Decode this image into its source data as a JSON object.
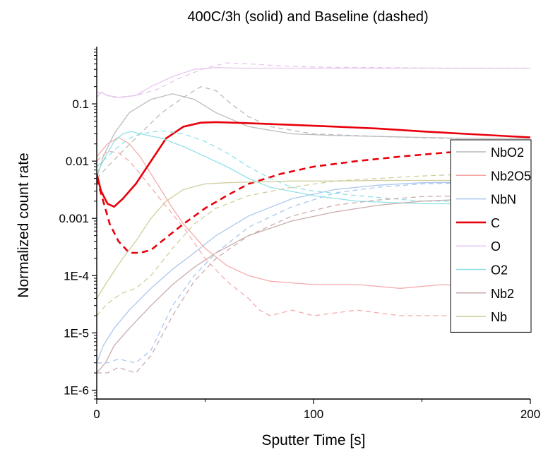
{
  "chart_data": {
    "type": "line",
    "title": "400C/3h (solid) and Baseline (dashed)",
    "xlabel": "Sputter Time [s]",
    "ylabel": "Normalized count rate",
    "xlim": [
      0,
      200
    ],
    "ylim": [
      7e-07,
      1.0
    ],
    "yscale": "log",
    "x_ticks": [
      {
        "value": 0,
        "label": "0"
      },
      {
        "value": 100,
        "label": "100"
      },
      {
        "value": 200,
        "label": "200"
      }
    ],
    "y_ticks": [
      {
        "value": 1e-06,
        "label": "1E-6"
      },
      {
        "value": 1e-05,
        "label": "1E-5"
      },
      {
        "value": 0.0001,
        "label": "1E-4"
      },
      {
        "value": 0.001,
        "label": "0.001"
      },
      {
        "value": 0.01,
        "label": "0.01"
      },
      {
        "value": 0.1,
        "label": "0.1"
      }
    ],
    "grid": false,
    "legend_position": "right",
    "series": [
      {
        "name": "NbO2",
        "color": "#b8b8b8",
        "solid": {
          "x": [
            0,
            3,
            8,
            15,
            25,
            35,
            45,
            55,
            70,
            90,
            110,
            130,
            150,
            170,
            200
          ],
          "y": [
            0.005,
            0.012,
            0.03,
            0.07,
            0.12,
            0.15,
            0.12,
            0.07,
            0.04,
            0.03,
            0.028,
            0.027,
            0.026,
            0.025,
            0.025
          ]
        },
        "dashed": {
          "x": [
            0,
            5,
            12,
            20,
            30,
            40,
            48,
            55,
            62,
            70,
            80,
            100,
            130,
            160,
            200
          ],
          "y": [
            0.005,
            0.008,
            0.015,
            0.03,
            0.07,
            0.13,
            0.2,
            0.17,
            0.1,
            0.06,
            0.04,
            0.03,
            0.027,
            0.025,
            0.025
          ]
        }
      },
      {
        "name": "Nb2O5",
        "color": "#f4a6a6",
        "solid": {
          "x": [
            0,
            5,
            10,
            15,
            20,
            25,
            30,
            35,
            40,
            50,
            60,
            70,
            80,
            100,
            120,
            140,
            160,
            180,
            200
          ],
          "y": [
            0.012,
            0.02,
            0.026,
            0.02,
            0.012,
            0.006,
            0.003,
            0.0015,
            0.0008,
            0.0003,
            0.00015,
            0.0001,
            8e-05,
            7e-05,
            7e-05,
            6e-05,
            7e-05,
            6e-05,
            7e-05
          ]
        },
        "dashed": {
          "x": [
            0,
            5,
            10,
            15,
            20,
            30,
            40,
            50,
            60,
            70,
            75,
            80,
            90,
            100,
            120,
            140,
            160,
            180,
            200
          ],
          "y": [
            0.01,
            0.015,
            0.014,
            0.01,
            0.006,
            0.002,
            0.0007,
            0.0002,
            8e-05,
            4e-05,
            2.5e-05,
            2e-05,
            2.5e-05,
            2e-05,
            2.5e-05,
            2e-05,
            2e-05,
            2e-05,
            2e-05
          ]
        }
      },
      {
        "name": "NbN",
        "color": "#a6c4ec",
        "solid": {
          "x": [
            0,
            3,
            8,
            15,
            25,
            35,
            45,
            55,
            70,
            90,
            110,
            130,
            150,
            175,
            200
          ],
          "y": [
            3e-06,
            6e-06,
            1.2e-05,
            2.5e-05,
            6e-05,
            0.00013,
            0.00025,
            0.0005,
            0.0011,
            0.0022,
            0.0032,
            0.0038,
            0.0042,
            0.0043,
            0.0045
          ]
        },
        "dashed": {
          "x": [
            0,
            5,
            10,
            18,
            25,
            35,
            45,
            55,
            70,
            90,
            110,
            130,
            150,
            175,
            200
          ],
          "y": [
            3e-06,
            3e-06,
            3.5e-06,
            3e-06,
            5e-06,
            3e-05,
            0.0001,
            0.00025,
            0.0007,
            0.0016,
            0.0028,
            0.0035,
            0.004,
            0.0042,
            0.0045
          ]
        }
      },
      {
        "name": "C",
        "color": "#e8000b",
        "solid": {
          "x": [
            0,
            2,
            5,
            8,
            12,
            18,
            25,
            32,
            40,
            48,
            55,
            70,
            90,
            110,
            130,
            150,
            170,
            200
          ],
          "y": [
            0.006,
            0.003,
            0.0018,
            0.0016,
            0.0022,
            0.004,
            0.01,
            0.025,
            0.04,
            0.047,
            0.048,
            0.046,
            0.043,
            0.04,
            0.037,
            0.033,
            0.03,
            0.026
          ]
        },
        "dashed": {
          "x": [
            0,
            3,
            6,
            10,
            15,
            20,
            25,
            30,
            40,
            50,
            60,
            70,
            85,
            100,
            120,
            140,
            160,
            180,
            200
          ],
          "y": [
            0.005,
            0.002,
            0.0008,
            0.0004,
            0.00025,
            0.00025,
            0.00028,
            0.0004,
            0.0008,
            0.0015,
            0.0025,
            0.004,
            0.006,
            0.008,
            0.01,
            0.012,
            0.014,
            0.016,
            0.017
          ]
        }
      },
      {
        "name": "O",
        "color": "#e6c4ec",
        "solid": {
          "x": [
            0,
            2,
            5,
            10,
            18,
            25,
            35,
            45,
            55,
            65,
            80,
            100,
            130,
            160,
            200
          ],
          "y": [
            0.13,
            0.16,
            0.14,
            0.13,
            0.14,
            0.2,
            0.3,
            0.4,
            0.43,
            0.42,
            0.42,
            0.42,
            0.42,
            0.42,
            0.42
          ]
        },
        "dashed": {
          "x": [
            0,
            3,
            7,
            12,
            18,
            28,
            38,
            50,
            60,
            70,
            85,
            100,
            130,
            160,
            200
          ],
          "y": [
            0.16,
            0.15,
            0.13,
            0.13,
            0.14,
            0.18,
            0.28,
            0.42,
            0.52,
            0.5,
            0.46,
            0.44,
            0.43,
            0.42,
            0.42
          ]
        }
      },
      {
        "name": "O2",
        "color": "#8ce0e6",
        "solid": {
          "x": [
            0,
            4,
            8,
            12,
            16,
            20,
            30,
            40,
            50,
            60,
            70,
            80,
            100,
            120,
            150,
            175,
            200
          ],
          "y": [
            0.006,
            0.012,
            0.022,
            0.03,
            0.033,
            0.03,
            0.025,
            0.018,
            0.012,
            0.008,
            0.005,
            0.0035,
            0.0025,
            0.002,
            0.0018,
            0.0018,
            0.0018
          ]
        },
        "dashed": {
          "x": [
            0,
            5,
            10,
            15,
            20,
            30,
            40,
            50,
            60,
            70,
            80,
            90,
            100,
            120,
            150,
            175,
            200
          ],
          "y": [
            0.008,
            0.012,
            0.018,
            0.025,
            0.03,
            0.034,
            0.03,
            0.022,
            0.014,
            0.008,
            0.005,
            0.0035,
            0.003,
            0.0025,
            0.002,
            0.002,
            0.002
          ]
        }
      },
      {
        "name": "Nb2",
        "color": "#c8a8a8",
        "solid": {
          "x": [
            0,
            4,
            8,
            15,
            25,
            35,
            45,
            55,
            70,
            90,
            110,
            130,
            150,
            175,
            200
          ],
          "y": [
            2e-06,
            3e-06,
            6e-06,
            1.2e-05,
            3e-05,
            7e-05,
            0.00014,
            0.00025,
            0.0005,
            0.0009,
            0.0013,
            0.0017,
            0.002,
            0.0022,
            0.0024
          ]
        },
        "dashed": {
          "x": [
            0,
            5,
            10,
            18,
            25,
            35,
            45,
            55,
            70,
            90,
            110,
            130,
            150,
            175,
            200
          ],
          "y": [
            2e-06,
            2e-06,
            2.5e-06,
            2e-06,
            4e-06,
            2e-05,
            8e-05,
            0.0002,
            0.0005,
            0.0011,
            0.0017,
            0.0021,
            0.0024,
            0.0025,
            0.0026
          ]
        }
      },
      {
        "name": "Nb",
        "color": "#cccc99",
        "solid": {
          "x": [
            0,
            4,
            8,
            12,
            18,
            25,
            32,
            40,
            50,
            60,
            70,
            90,
            110,
            130,
            150,
            175,
            200
          ],
          "y": [
            4e-05,
            7e-05,
            0.00012,
            0.0002,
            0.0004,
            0.001,
            0.002,
            0.0032,
            0.004,
            0.0042,
            0.0043,
            0.0045,
            0.0045,
            0.0046,
            0.0046,
            0.0046,
            0.0046
          ]
        },
        "dashed": {
          "x": [
            0,
            4,
            8,
            12,
            18,
            25,
            35,
            45,
            55,
            70,
            90,
            110,
            130,
            150,
            175,
            200
          ],
          "y": [
            2e-05,
            3e-05,
            4e-05,
            5e-05,
            6e-05,
            0.0001,
            0.0003,
            0.0008,
            0.0015,
            0.0025,
            0.0035,
            0.0045,
            0.005,
            0.0055,
            0.006,
            0.0065
          ]
        }
      }
    ]
  }
}
